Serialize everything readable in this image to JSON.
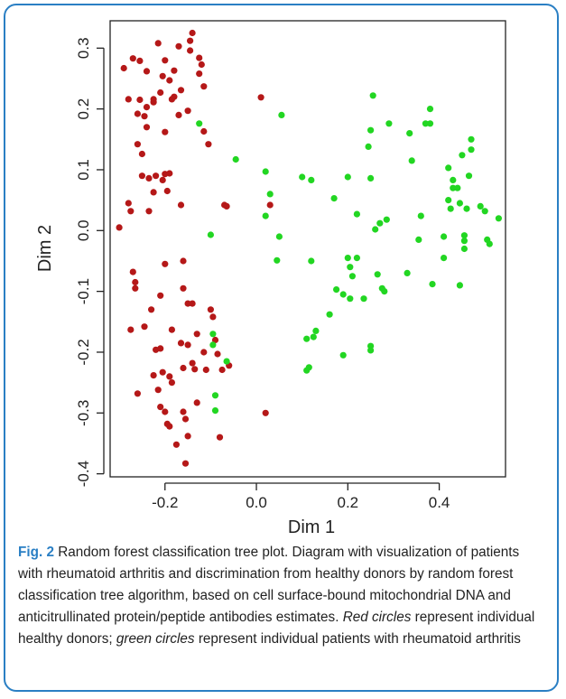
{
  "chart_data": {
    "type": "scatter",
    "xlabel": "Dim 1",
    "ylabel": "Dim 2",
    "xlim": [
      -0.32,
      0.545
    ],
    "ylim": [
      -0.405,
      0.345
    ],
    "xticks": [
      "-0.2",
      "0.0",
      "0.2",
      "0.4"
    ],
    "xtick_values": [
      -0.2,
      0.0,
      0.2,
      0.4
    ],
    "yticks": [
      "-0.4",
      "-0.3",
      "-0.2",
      "-0.1",
      "0.0",
      "0.1",
      "0.2",
      "0.3"
    ],
    "ytick_values": [
      -0.4,
      -0.3,
      -0.2,
      -0.1,
      0.0,
      0.1,
      0.2,
      0.3
    ],
    "grid": false,
    "series": [
      {
        "color": "#b51818",
        "points": [
          [
            -0.3,
            0.005
          ],
          [
            -0.29,
            0.267
          ],
          [
            -0.28,
            0.045
          ],
          [
            -0.275,
            0.032
          ],
          [
            -0.28,
            0.216
          ],
          [
            -0.27,
            0.283
          ],
          [
            -0.27,
            -0.068
          ],
          [
            -0.275,
            -0.163
          ],
          [
            -0.265,
            -0.085
          ],
          [
            -0.265,
            -0.095
          ],
          [
            -0.26,
            0.192
          ],
          [
            -0.26,
            -0.268
          ],
          [
            -0.255,
            0.215
          ],
          [
            -0.255,
            0.279
          ],
          [
            -0.26,
            0.142
          ],
          [
            -0.25,
            0.126
          ],
          [
            -0.245,
            -0.158
          ],
          [
            -0.245,
            0.188
          ],
          [
            -0.24,
            0.262
          ],
          [
            -0.24,
            0.203
          ],
          [
            -0.235,
            0.086
          ],
          [
            -0.235,
            0.032
          ],
          [
            -0.225,
            0.216
          ],
          [
            -0.225,
            0.211
          ],
          [
            -0.22,
            0.09
          ],
          [
            -0.215,
            0.308
          ],
          [
            -0.21,
            0.227
          ],
          [
            -0.21,
            -0.107
          ],
          [
            -0.205,
            0.254
          ],
          [
            -0.205,
            0.083
          ],
          [
            -0.225,
            0.063
          ],
          [
            -0.225,
            -0.238
          ],
          [
            -0.22,
            -0.196
          ],
          [
            -0.215,
            -0.262
          ],
          [
            -0.21,
            -0.29
          ],
          [
            -0.205,
            -0.233
          ],
          [
            -0.21,
            -0.194
          ],
          [
            -0.2,
            -0.298
          ],
          [
            -0.195,
            -0.318
          ],
          [
            -0.19,
            -0.322
          ],
          [
            -0.19,
            -0.24
          ],
          [
            -0.2,
            0.28
          ],
          [
            -0.2,
            0.162
          ],
          [
            -0.2,
            0.093
          ],
          [
            -0.195,
            0.065
          ],
          [
            -0.19,
            0.094
          ],
          [
            -0.19,
            0.247
          ],
          [
            -0.185,
            0.216
          ],
          [
            -0.185,
            -0.25
          ],
          [
            -0.185,
            -0.163
          ],
          [
            -0.18,
            0.263
          ],
          [
            -0.175,
            -0.352
          ],
          [
            -0.17,
            0.303
          ],
          [
            -0.165,
            0.231
          ],
          [
            -0.165,
            0.042
          ],
          [
            -0.165,
            -0.185
          ],
          [
            -0.16,
            -0.095
          ],
          [
            -0.16,
            -0.05
          ],
          [
            -0.16,
            -0.226
          ],
          [
            -0.16,
            -0.298
          ],
          [
            -0.155,
            -0.383
          ],
          [
            -0.155,
            -0.31
          ],
          [
            -0.15,
            0.197
          ],
          [
            -0.15,
            -0.188
          ],
          [
            -0.15,
            -0.338
          ],
          [
            -0.145,
            0.312
          ],
          [
            -0.145,
            0.296
          ],
          [
            -0.14,
            0.325
          ],
          [
            -0.14,
            -0.12
          ],
          [
            -0.14,
            -0.218
          ],
          [
            -0.135,
            -0.228
          ],
          [
            -0.13,
            -0.283
          ],
          [
            -0.125,
            0.258
          ],
          [
            -0.125,
            0.284
          ],
          [
            -0.12,
            0.273
          ],
          [
            -0.115,
            0.237
          ],
          [
            -0.115,
            0.163
          ],
          [
            -0.115,
            -0.2
          ],
          [
            -0.11,
            -0.229
          ],
          [
            -0.105,
            0.142
          ],
          [
            -0.1,
            -0.13
          ],
          [
            -0.095,
            -0.142
          ],
          [
            -0.09,
            -0.18
          ],
          [
            -0.085,
            -0.203
          ],
          [
            -0.08,
            -0.34
          ],
          [
            -0.075,
            -0.229
          ],
          [
            -0.07,
            0.042
          ],
          [
            -0.065,
            0.04
          ],
          [
            -0.06,
            -0.222
          ],
          [
            -0.25,
            0.09
          ],
          [
            -0.24,
            0.17
          ],
          [
            -0.18,
            0.22
          ],
          [
            -0.23,
            -0.13
          ],
          [
            -0.2,
            -0.055
          ],
          [
            -0.15,
            -0.12
          ],
          [
            0.01,
            0.219
          ],
          [
            0.03,
            0.042
          ],
          [
            0.02,
            -0.3
          ],
          [
            -0.17,
            0.19
          ],
          [
            -0.13,
            -0.17
          ]
        ]
      },
      {
        "color": "#22d622",
        "points": [
          [
            -0.125,
            0.176
          ],
          [
            -0.1,
            -0.007
          ],
          [
            -0.095,
            -0.17
          ],
          [
            -0.09,
            -0.271
          ],
          [
            -0.09,
            -0.296
          ],
          [
            -0.095,
            -0.188
          ],
          [
            -0.065,
            -0.215
          ],
          [
            -0.045,
            0.117
          ],
          [
            0.02,
            0.097
          ],
          [
            0.02,
            0.024
          ],
          [
            0.03,
            0.06
          ],
          [
            0.045,
            -0.049
          ],
          [
            0.05,
            -0.01
          ],
          [
            0.055,
            0.19
          ],
          [
            0.1,
            0.088
          ],
          [
            0.11,
            -0.178
          ],
          [
            0.11,
            -0.23
          ],
          [
            0.115,
            -0.225
          ],
          [
            0.12,
            0.083
          ],
          [
            0.12,
            -0.05
          ],
          [
            0.125,
            -0.175
          ],
          [
            0.13,
            -0.165
          ],
          [
            0.16,
            -0.138
          ],
          [
            0.17,
            0.053
          ],
          [
            0.175,
            -0.097
          ],
          [
            0.19,
            -0.205
          ],
          [
            0.19,
            -0.105
          ],
          [
            0.2,
            0.088
          ],
          [
            0.2,
            -0.045
          ],
          [
            0.205,
            -0.112
          ],
          [
            0.205,
            -0.06
          ],
          [
            0.21,
            -0.075
          ],
          [
            0.22,
            0.027
          ],
          [
            0.22,
            -0.045
          ],
          [
            0.235,
            -0.112
          ],
          [
            0.245,
            0.138
          ],
          [
            0.25,
            -0.19
          ],
          [
            0.25,
            -0.197
          ],
          [
            0.25,
            0.165
          ],
          [
            0.25,
            0.086
          ],
          [
            0.255,
            0.222
          ],
          [
            0.26,
            0.002
          ],
          [
            0.265,
            -0.072
          ],
          [
            0.27,
            0.012
          ],
          [
            0.275,
            -0.095
          ],
          [
            0.28,
            -0.1
          ],
          [
            0.285,
            0.018
          ],
          [
            0.29,
            0.176
          ],
          [
            0.33,
            -0.07
          ],
          [
            0.335,
            0.16
          ],
          [
            0.34,
            0.115
          ],
          [
            0.355,
            -0.015
          ],
          [
            0.36,
            0.024
          ],
          [
            0.37,
            0.176
          ],
          [
            0.38,
            0.2
          ],
          [
            0.38,
            0.176
          ],
          [
            0.385,
            -0.088
          ],
          [
            0.41,
            -0.045
          ],
          [
            0.41,
            -0.01
          ],
          [
            0.42,
            0.103
          ],
          [
            0.425,
            0.036
          ],
          [
            0.43,
            0.083
          ],
          [
            0.43,
            0.07
          ],
          [
            0.44,
            0.07
          ],
          [
            0.445,
            -0.09
          ],
          [
            0.445,
            0.045
          ],
          [
            0.45,
            0.124
          ],
          [
            0.455,
            -0.03
          ],
          [
            0.455,
            -0.017
          ],
          [
            0.46,
            0.036
          ],
          [
            0.465,
            0.09
          ],
          [
            0.47,
            0.15
          ],
          [
            0.47,
            0.133
          ],
          [
            0.49,
            0.04
          ],
          [
            0.5,
            0.032
          ],
          [
            0.505,
            -0.015
          ],
          [
            0.51,
            -0.022
          ],
          [
            0.53,
            0.02
          ],
          [
            0.42,
            0.05
          ],
          [
            0.455,
            -0.008
          ]
        ]
      }
    ]
  },
  "caption": {
    "label": "Fig. 2",
    "text1": " Random forest classification tree plot. Diagram with visualization of patients with rheumatoid arthritis and discrimination from healthy donors by random forest classification tree algorithm, based on cell surface-bound mitochondrial DNA and anticitrullinated protein/peptide antibodies estimates. ",
    "red_italic": "Red circles",
    "text2": " represent individual healthy donors; ",
    "green_italic": "green circles",
    "text3": " represent individual patients with rheumatoid arthritis"
  }
}
